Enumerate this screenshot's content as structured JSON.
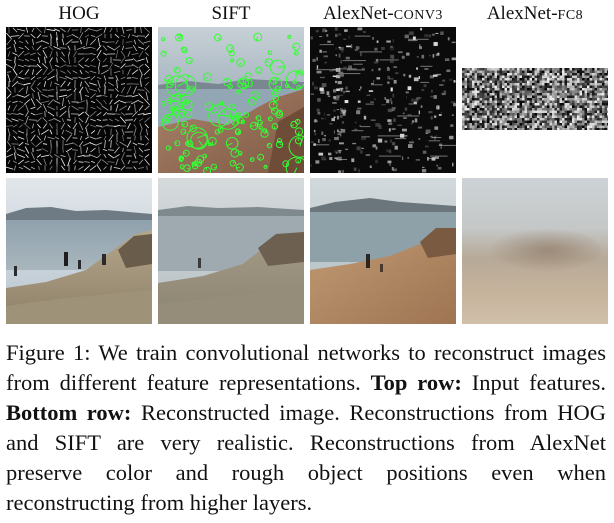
{
  "figure": {
    "columns": [
      {
        "label_main": "HOG",
        "label_small": ""
      },
      {
        "label_main": "SIFT",
        "label_small": ""
      },
      {
        "label_main": "AlexNet-",
        "label_small": "CONV3"
      },
      {
        "label_main": "AlexNet-",
        "label_small": "FC8"
      }
    ],
    "rows": [
      "Input features",
      "Reconstructed image"
    ]
  },
  "caption": {
    "prefix": "Figure 1:",
    "text1": " We train convolutional networks to reconstruct images from different feature representations. ",
    "bold1": "Top row:",
    "text2": " Input features. ",
    "bold2": "Bottom row:",
    "text3": " Reconstructed image. Reconstructions from HOG and SIFT are very realistic. Reconstructions from AlexNet preserve color and rough object positions even when reconstructing from higher layers."
  },
  "colors": {
    "sky": "#b9c6cf",
    "sea": "#8fa3b0",
    "rock": "#b39a78",
    "sift_keypoint": "#33ff33",
    "feature_bg": "#0b0b0b"
  }
}
